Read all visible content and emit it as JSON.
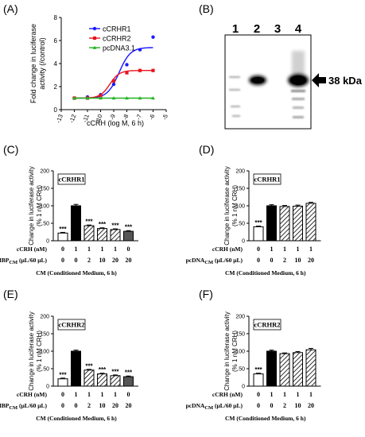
{
  "panel_labels": [
    "(A)",
    "(B)",
    "(C)",
    "(D)",
    "(E)",
    "(F)"
  ],
  "blot": {
    "lane_labels": [
      "1",
      "2",
      "3",
      "4"
    ],
    "band_label": "38 kDa"
  },
  "colors": {
    "cCRHR1": "#1a1aff",
    "cCRHR2": "#e8141e",
    "pcDNA3.1": "#22b422"
  },
  "chart_data": [
    {
      "type": "line",
      "panel": "(A)",
      "xlabel": "cCRH (log M, 6 h)",
      "ylabel": "Fold change in luciferase activity (/control)",
      "x": [
        -12,
        -11,
        -10,
        -9,
        -8,
        -7,
        -6
      ],
      "xticks": [
        "-13",
        "-12",
        "-11",
        "-10",
        "-9",
        "-8",
        "-7",
        "-6",
        "-5"
      ],
      "xlim": [
        -13,
        -5
      ],
      "yticks": [
        "0",
        "2",
        "4",
        "6",
        "8"
      ],
      "ylim": [
        0,
        8
      ],
      "legend_placement": "top-right",
      "series": [
        {
          "name": "cCRHR1",
          "values": [
            1.0,
            1.1,
            1.3,
            2.2,
            3.9,
            5.2,
            6.3
          ]
        },
        {
          "name": "cCRHR2",
          "values": [
            1.0,
            1.0,
            1.2,
            2.5,
            3.2,
            3.4,
            3.4
          ]
        },
        {
          "name": "pcDNA3.1",
          "values": [
            1.0,
            1.0,
            1.0,
            1.0,
            1.0,
            1.0,
            1.0
          ]
        }
      ]
    },
    {
      "type": "bar",
      "panel": "(C)",
      "legend_box": "cCRHR1",
      "ylabel": "Change in luciferase activity (% 1 nM CRH)",
      "yticks": [
        "0",
        "50",
        "100",
        "150",
        "200"
      ],
      "ylim": [
        0,
        200
      ],
      "values": [
        22,
        100,
        43,
        35,
        32,
        27
      ],
      "errors": [
        2,
        4,
        2,
        2,
        2,
        2
      ],
      "significance": [
        "***",
        "",
        "***",
        "***",
        "***",
        "***"
      ],
      "row_labels": [
        "cCRH (nM)",
        "cCRHBPCM (μL/60 μL)"
      ],
      "row_values": [
        [
          "0",
          "1",
          "1",
          "1",
          "1",
          "0"
        ],
        [
          "0",
          "0",
          "2",
          "10",
          "20",
          "20"
        ]
      ],
      "footer": "CM (Conditioned Medium, 6 h)"
    },
    {
      "type": "bar",
      "panel": "(D)",
      "legend_box": "cCRHR1",
      "ylabel": "Change in luciferase activity (% 1 nM CRH)",
      "yticks": [
        "0",
        "50",
        "100",
        "150",
        "200"
      ],
      "ylim": [
        0,
        200
      ],
      "values": [
        40,
        100,
        98,
        99,
        107
      ],
      "errors": [
        2,
        3,
        3,
        3,
        3
      ],
      "significance": [
        "***",
        "",
        "",
        "",
        ""
      ],
      "row_labels": [
        "cCRH (nM)",
        "pcDNACM (μL/60 μL)"
      ],
      "row_values": [
        [
          "0",
          "1",
          "1",
          "1",
          "1"
        ],
        [
          "0",
          "0",
          "2",
          "10",
          "20"
        ]
      ],
      "footer": "CM (Conditioned Medium, 6 h)"
    },
    {
      "type": "bar",
      "panel": "(E)",
      "legend_box": "cCRHR2",
      "ylabel": "Change in luciferase activity (% 1 nM CRH)",
      "yticks": [
        "0",
        "50",
        "100",
        "150",
        "200"
      ],
      "ylim": [
        0,
        200
      ],
      "values": [
        21,
        100,
        46,
        35,
        30,
        27
      ],
      "errors": [
        2,
        3,
        2,
        2,
        2,
        2
      ],
      "significance": [
        "***",
        "",
        "***",
        "***",
        "***",
        "***"
      ],
      "row_labels": [
        "cCRH (nM)",
        "cCRHBPCM (μL/60 μL)"
      ],
      "row_values": [
        [
          "0",
          "1",
          "1",
          "1",
          "1",
          "0"
        ],
        [
          "0",
          "0",
          "2",
          "10",
          "20",
          "20"
        ]
      ],
      "footer": "CM (Conditioned Medium, 6 h)"
    },
    {
      "type": "bar",
      "panel": "(F)",
      "legend_box": "cCRHR2",
      "ylabel": "Change in luciferase activity (% 1 nM CRH)",
      "yticks": [
        "0",
        "50",
        "100",
        "150",
        "200"
      ],
      "ylim": [
        0,
        200
      ],
      "values": [
        35,
        100,
        93,
        96,
        104
      ],
      "errors": [
        2,
        3,
        2,
        3,
        4
      ],
      "significance": [
        "***",
        "",
        "",
        "",
        ""
      ],
      "row_labels": [
        "cCRH (nM)",
        "pcDNACM (μL/60 μL)"
      ],
      "row_values": [
        [
          "0",
          "1",
          "1",
          "1",
          "1"
        ],
        [
          "0",
          "0",
          "2",
          "10",
          "20"
        ]
      ],
      "footer": "CM (Conditioned Medium, 6 h)"
    }
  ]
}
